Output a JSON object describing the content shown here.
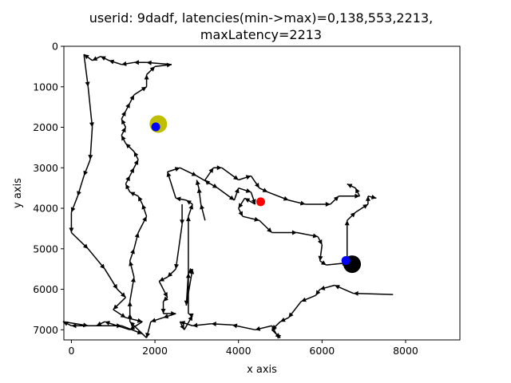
{
  "chart_data": {
    "type": "line",
    "title_lines": [
      "userid: 9dadf, latencies(min->max)=0,138,553,2213,",
      "maxLatency=2213"
    ],
    "xlabel": "x axis",
    "ylabel": "y axis",
    "xlim": [
      -180,
      9300
    ],
    "ylim": [
      7250,
      0
    ],
    "y_inverted": true,
    "grid": false,
    "xticks": [
      0,
      2000,
      4000,
      6000,
      8000
    ],
    "yticks": [
      0,
      1000,
      2000,
      3000,
      4000,
      5000,
      6000,
      7000
    ],
    "path_color": "#000000",
    "path": [
      [
        7700,
        6130
      ],
      [
        6750,
        6100
      ],
      [
        6300,
        5900
      ],
      [
        5950,
        6000
      ],
      [
        5850,
        6150
      ],
      [
        5500,
        6300
      ],
      [
        5200,
        6700
      ],
      [
        5000,
        6800
      ],
      [
        4800,
        7000
      ],
      [
        5000,
        7200
      ],
      [
        4900,
        7100
      ],
      [
        4800,
        6900
      ],
      [
        4400,
        7000
      ],
      [
        3850,
        6880
      ],
      [
        3350,
        6850
      ],
      [
        2900,
        6900
      ],
      [
        2600,
        6800
      ],
      [
        2700,
        7000
      ],
      [
        2900,
        6650
      ],
      [
        2800,
        6600
      ],
      [
        2800,
        5600
      ],
      [
        2750,
        6400
      ],
      [
        2900,
        5500
      ],
      [
        2800,
        5600
      ],
      [
        2800,
        4200
      ],
      [
        2900,
        3900
      ],
      [
        2750,
        3800
      ],
      [
        2500,
        3750
      ],
      [
        2300,
        3100
      ],
      [
        2600,
        3000
      ],
      [
        3000,
        3200
      ],
      [
        3500,
        3500
      ],
      [
        3900,
        3800
      ],
      [
        4000,
        3500
      ],
      [
        4300,
        3600
      ],
      [
        4400,
        3900
      ],
      [
        4150,
        3750
      ],
      [
        4000,
        4000
      ],
      [
        4100,
        4200
      ],
      [
        4500,
        4300
      ],
      [
        4800,
        4600
      ],
      [
        5400,
        4600
      ],
      [
        5900,
        4700
      ],
      [
        6000,
        4900
      ],
      [
        5950,
        5300
      ],
      [
        6100,
        5400
      ],
      [
        6600,
        5350
      ],
      [
        6800,
        5450
      ],
      [
        6700,
        5400
      ],
      [
        6600,
        5200
      ],
      [
        6600,
        4300
      ],
      [
        6800,
        4100
      ],
      [
        7100,
        3900
      ],
      [
        7100,
        3700
      ],
      [
        7300,
        3750
      ]
    ],
    "path_b": [
      [
        2650,
        3900
      ],
      [
        2650,
        4400
      ],
      [
        2500,
        5500
      ],
      [
        2300,
        5700
      ],
      [
        2100,
        5800
      ],
      [
        2300,
        6200
      ],
      [
        2200,
        6300
      ],
      [
        2200,
        6600
      ],
      [
        2500,
        6600
      ],
      [
        2200,
        6700
      ],
      [
        1900,
        6800
      ],
      [
        1800,
        7200
      ],
      [
        1400,
        6800
      ],
      [
        1400,
        6600
      ],
      [
        1400,
        6300
      ],
      [
        1500,
        5700
      ],
      [
        1400,
        5300
      ],
      [
        1500,
        5000
      ],
      [
        1600,
        4600
      ],
      [
        1800,
        4200
      ],
      [
        1700,
        3900
      ],
      [
        1600,
        3700
      ],
      [
        1400,
        3600
      ],
      [
        1300,
        3400
      ],
      [
        1400,
        3200
      ],
      [
        1500,
        3000
      ],
      [
        1600,
        2800
      ],
      [
        1500,
        2600
      ],
      [
        1300,
        2400
      ],
      [
        1200,
        2200
      ],
      [
        1300,
        2000
      ],
      [
        1200,
        1800
      ],
      [
        1300,
        1600
      ],
      [
        1400,
        1400
      ],
      [
        1500,
        1200
      ],
      [
        1800,
        1000
      ],
      [
        1800,
        700
      ],
      [
        2000,
        500
      ],
      [
        2400,
        450
      ],
      [
        1800,
        400
      ],
      [
        1500,
        400
      ],
      [
        1200,
        450
      ],
      [
        900,
        350
      ],
      [
        700,
        250
      ],
      [
        500,
        350
      ],
      [
        300,
        200
      ],
      [
        400,
        1000
      ],
      [
        500,
        2000
      ],
      [
        450,
        2800
      ],
      [
        300,
        3200
      ],
      [
        150,
        3700
      ],
      [
        0,
        4100
      ],
      [
        0,
        4600
      ],
      [
        400,
        5000
      ],
      [
        800,
        5500
      ],
      [
        1100,
        6000
      ],
      [
        1300,
        6200
      ],
      [
        1000,
        6500
      ],
      [
        1300,
        6700
      ],
      [
        1700,
        6800
      ],
      [
        1400,
        7000
      ],
      [
        800,
        6800
      ],
      [
        600,
        6900
      ],
      [
        0,
        6900
      ],
      [
        -200,
        6800
      ],
      [
        400,
        6900
      ],
      [
        1200,
        6900
      ],
      [
        1700,
        7100
      ]
    ],
    "path_c": [
      [
        3300,
        3400
      ],
      [
        3200,
        3300
      ],
      [
        3400,
        3000
      ],
      [
        3600,
        3000
      ],
      [
        4000,
        3300
      ],
      [
        4300,
        3200
      ],
      [
        4500,
        3500
      ],
      [
        4700,
        3600
      ],
      [
        5200,
        3800
      ],
      [
        5600,
        3900
      ],
      [
        6200,
        3900
      ],
      [
        6400,
        3700
      ],
      [
        6900,
        3700
      ],
      [
        6800,
        3500
      ],
      [
        6600,
        3400
      ]
    ],
    "path_d": [
      [
        3200,
        4300
      ],
      [
        3100,
        3900
      ],
      [
        3050,
        3500
      ],
      [
        3000,
        3300
      ]
    ],
    "markers": [
      {
        "x": 2080,
        "y": 1920,
        "color": "#bfbf00",
        "size": 11
      },
      {
        "x": 2020,
        "y": 1990,
        "color": "#0000ff",
        "size": 5.5
      },
      {
        "x": 4530,
        "y": 3840,
        "color": "#ff0000",
        "size": 5.5
      },
      {
        "x": 6720,
        "y": 5380,
        "color": "#000000",
        "size": 11
      },
      {
        "x": 6570,
        "y": 5290,
        "color": "#0000ff",
        "size": 5.5
      }
    ]
  }
}
